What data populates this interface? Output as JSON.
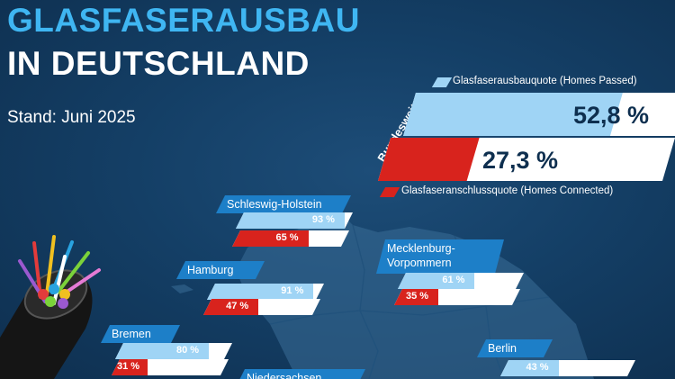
{
  "header": {
    "title_line1": "GLASFASERAUSBAU",
    "title_line2": "IN DEUTSCHLAND",
    "stand": "Stand: Juni 2025"
  },
  "legend": {
    "passed_label": "Glasfaserausbauquote (Homes Passed)",
    "connected_label": "Glasfaseranschlussquote (Homes Connected)"
  },
  "national": {
    "label": "Bundesweit",
    "passed_text": "52,8 %",
    "connected_text": "27,3 %"
  },
  "colors": {
    "passed": "#9fd4f5",
    "connected": "#d8231d",
    "label_bg": "#1d7fc8",
    "title_blue": "#3fb6f2"
  },
  "chart_data": {
    "type": "bar",
    "title": "GLASFASERAUSBAU IN DEUTSCHLAND",
    "subtitle": "Stand: Juni 2025",
    "series_names": [
      "Glasfaserausbauquote (Homes Passed)",
      "Glasfaseranschlussquote (Homes Connected)"
    ],
    "national": {
      "name": "Bundesweit",
      "passed": 52.8,
      "connected": 27.3
    },
    "states": [
      {
        "name": "Schleswig-Holstein",
        "passed": 93,
        "connected": 65,
        "passed_text": "93 %",
        "connected_text": "65 %"
      },
      {
        "name": "Hamburg",
        "passed": 91,
        "connected": 47,
        "passed_text": "91 %",
        "connected_text": "47 %"
      },
      {
        "name": "Mecklenburg-\nVorpommern",
        "passed": 61,
        "connected": 35,
        "passed_text": "61 %",
        "connected_text": "35 %"
      },
      {
        "name": "Bremen",
        "passed": 80,
        "connected": 31,
        "passed_text": "80 %",
        "connected_text": "31 %"
      },
      {
        "name": "Berlin",
        "passed": 43,
        "connected": null,
        "passed_text": "43 %",
        "connected_text": ""
      },
      {
        "name": "Niedersachsen",
        "passed": null,
        "connected": null,
        "passed_text": "",
        "connected_text": ""
      }
    ]
  }
}
